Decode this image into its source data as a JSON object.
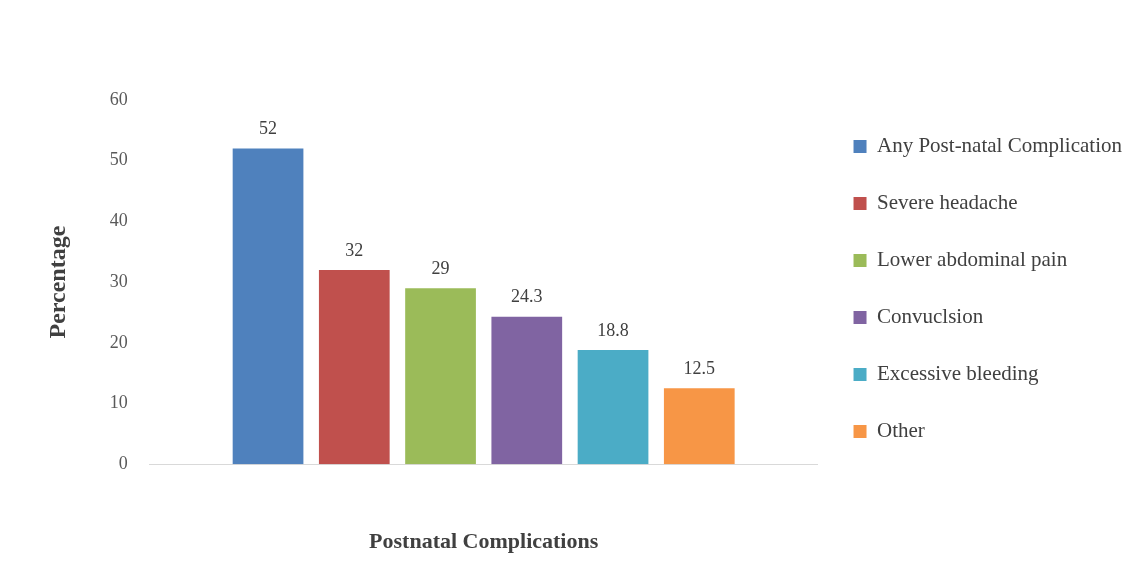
{
  "chart_data": {
    "type": "bar",
    "xlabel": "Postnatal Complications",
    "ylabel": "Percentage",
    "categories": [
      null
    ],
    "series": [
      {
        "name": "Any Post-natal Complication",
        "color": "#4f81bd",
        "values": [
          52
        ]
      },
      {
        "name": "Severe headache",
        "color": "#c0504d",
        "values": [
          32
        ]
      },
      {
        "name": "Lower abdominal pain",
        "color": "#9bbb59",
        "values": [
          29
        ]
      },
      {
        "name": "Convuclsion",
        "color": "#8064a2",
        "values": [
          24.3
        ]
      },
      {
        "name": "Excessive bleeding",
        "color": "#4bacc6",
        "values": [
          18.8
        ]
      },
      {
        "name": "Other",
        "color": "#f79646",
        "values": [
          12.5
        ]
      }
    ],
    "ylim": [
      0,
      60
    ],
    "yticks": [
      0,
      10,
      20,
      30,
      40,
      50,
      60
    ],
    "grid": false,
    "legend": "right",
    "data_labels": true
  }
}
